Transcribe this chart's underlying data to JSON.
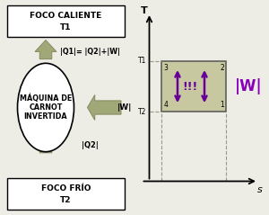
{
  "bg_color": "#eeede5",
  "left_panel": {
    "hot_box_label_1": "FOCO CALIENTE",
    "hot_box_label_2": "T1",
    "cold_box_label_1": "FOCO FRÍO",
    "cold_box_label_2": "T2",
    "machine_label_1": "MÁQUINA DE",
    "machine_label_2": "CARNOT",
    "machine_label_3": "INVERTIDA",
    "q1_label": "|Q1|= |Q2|+|W|",
    "q2_label": "|Q2|",
    "w_label": "|W|",
    "arrow_fill": "#a0a878",
    "arrow_edge": "#888860"
  },
  "right_panel": {
    "T_label": "T",
    "s_label": "s",
    "T1_label": "T1",
    "T2_label": "T2",
    "W_label": "|W|",
    "rect_fill": "#c8c8a0",
    "rect_edge": "#555550",
    "dash_color": "#999988",
    "arr_color": "#660099",
    "W_color": "#8800bb"
  }
}
